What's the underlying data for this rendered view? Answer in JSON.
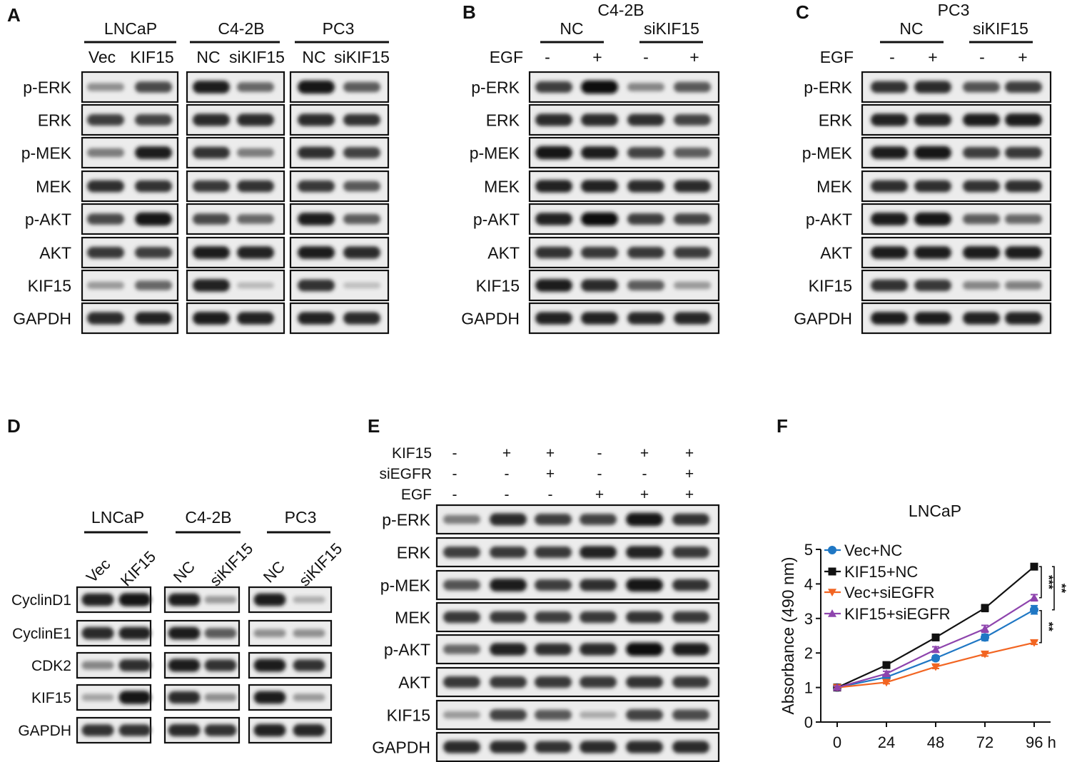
{
  "panels": {
    "A": {
      "letter": "A",
      "groups": [
        {
          "name": "LNCaP",
          "lanes": [
            "Vec",
            "KIF15"
          ]
        },
        {
          "name": "C4-2B",
          "lanes": [
            "NC",
            "siKIF15"
          ]
        },
        {
          "name": "PC3",
          "lanes": [
            "NC",
            "siKIF15"
          ]
        }
      ],
      "rows": [
        "p-ERK",
        "ERK",
        "p-MEK",
        "MEK",
        "p-AKT",
        "AKT",
        "KIF15",
        "GAPDH"
      ]
    },
    "B": {
      "letter": "B",
      "cell_line": "C4-2B",
      "groups": [
        "NC",
        "siKIF15"
      ],
      "egf_label": "EGF",
      "egf": [
        "-",
        "+",
        "-",
        "+"
      ],
      "rows": [
        "p-ERK",
        "ERK",
        "p-MEK",
        "MEK",
        "p-AKT",
        "AKT",
        "KIF15",
        "GAPDH"
      ]
    },
    "C": {
      "letter": "C",
      "cell_line": "PC3",
      "groups": [
        "NC",
        "siKIF15"
      ],
      "egf_label": "EGF",
      "egf": [
        "-",
        "+",
        "-",
        "+"
      ],
      "rows": [
        "p-ERK",
        "ERK",
        "p-MEK",
        "MEK",
        "p-AKT",
        "AKT",
        "KIF15",
        "GAPDH"
      ]
    },
    "D": {
      "letter": "D",
      "groups": [
        {
          "name": "LNCaP",
          "lanes": [
            "Vec",
            "KIF15"
          ]
        },
        {
          "name": "C4-2B",
          "lanes": [
            "NC",
            "siKIF15"
          ]
        },
        {
          "name": "PC3",
          "lanes": [
            "NC",
            "siKIF15"
          ]
        }
      ],
      "rows": [
        "CyclinD1",
        "CyclinE1",
        "CDK2",
        "KIF15",
        "GAPDH"
      ]
    },
    "E": {
      "letter": "E",
      "conditions": [
        {
          "label": "KIF15",
          "values": [
            "-",
            "+",
            "+",
            "-",
            "+",
            "+"
          ]
        },
        {
          "label": "siEGFR",
          "values": [
            "-",
            "-",
            "+",
            "-",
            "-",
            "+"
          ]
        },
        {
          "label": "EGF",
          "values": [
            "-",
            "-",
            "-",
            "+",
            "+",
            "+"
          ]
        }
      ],
      "rows": [
        "p-ERK",
        "ERK",
        "p-MEK",
        "MEK",
        "p-AKT",
        "AKT",
        "KIF15",
        "GAPDH"
      ]
    },
    "F": {
      "letter": "F"
    }
  },
  "chart_data": {
    "type": "line",
    "title": "LNCaP",
    "ylabel": "Absorbance (490 nm)",
    "xlabel": "",
    "x": [
      0,
      24,
      48,
      72,
      96
    ],
    "xtick_labels": [
      "0",
      "24",
      "48",
      "72",
      "96 h"
    ],
    "ylim": [
      0,
      5
    ],
    "yticks": [
      0,
      1,
      2,
      3,
      4,
      5
    ],
    "series": [
      {
        "name": "Vec+NC",
        "color": "#1f77c4",
        "marker": "circle",
        "values": [
          1.0,
          1.3,
          1.85,
          2.45,
          3.25
        ],
        "errors": [
          0.04,
          0.06,
          0.07,
          0.09,
          0.12
        ]
      },
      {
        "name": "KIF15+NC",
        "color": "#111111",
        "marker": "square",
        "values": [
          1.0,
          1.65,
          2.45,
          3.3,
          4.5
        ],
        "errors": [
          0.03,
          0.05,
          0.08,
          0.1,
          0.04
        ]
      },
      {
        "name": "Vec+siEGFR",
        "color": "#f26522",
        "marker": "triangle-down",
        "values": [
          1.0,
          1.15,
          1.6,
          1.97,
          2.3
        ],
        "errors": [
          0.03,
          0.04,
          0.05,
          0.06,
          0.05
        ]
      },
      {
        "name": "KIF15+siEGFR",
        "color": "#8e44ad",
        "marker": "triangle-up",
        "values": [
          1.0,
          1.4,
          2.1,
          2.7,
          3.6
        ],
        "errors": [
          0.04,
          0.07,
          0.08,
          0.1,
          0.09
        ]
      }
    ],
    "significance": [
      "***",
      "**",
      "**"
    ],
    "legend_position": "top-left"
  }
}
